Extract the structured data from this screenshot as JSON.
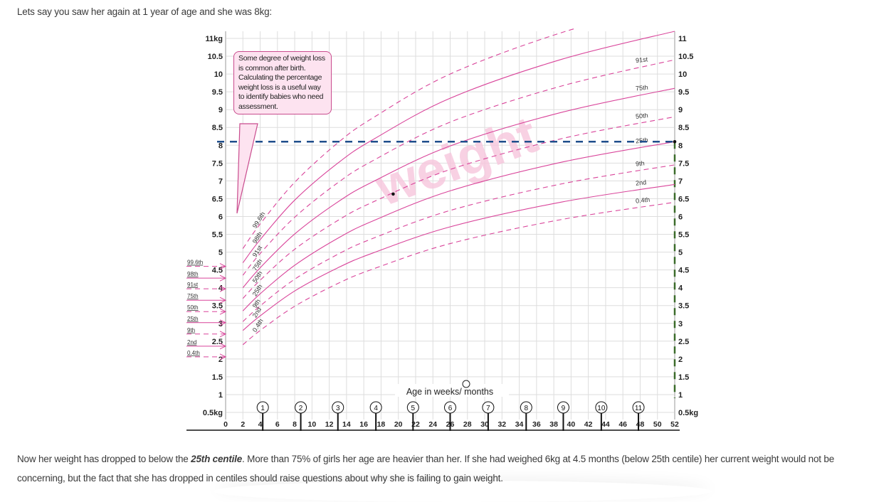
{
  "intro_text": "Lets say you saw her again at 1 year of age and she was 8kg:",
  "outro": {
    "before": "Now her weight has dropped to below the ",
    "bold": "25th centile",
    "after": ". More than 75% of girls her age are heavier than her. If she had weighed 6kg at 4.5 months (below 25th centile) her current weight would not be concerning, but the fact that she has dropped in centiles should raise questions about why she is failing to gain weight."
  },
  "chart_data": {
    "type": "line",
    "title": "",
    "watermark": "weight",
    "xlabel": "Age in weeks/ months",
    "ylabel": "",
    "xlim": [
      0,
      52
    ],
    "ylim": [
      0.5,
      11
    ],
    "x_ticks": [
      0,
      2,
      4,
      6,
      8,
      10,
      12,
      14,
      16,
      18,
      20,
      22,
      24,
      26,
      28,
      30,
      32,
      34,
      36,
      38,
      40,
      42,
      44,
      46,
      48,
      50,
      52
    ],
    "y_ticks_left": [
      "11kg",
      "10.5",
      "10",
      "9.5",
      "9",
      "8.5",
      "8",
      "7.5",
      "7",
      "6.5",
      "6",
      "5.5",
      "5",
      "4.5",
      "4",
      "3.5",
      "3",
      "2.5",
      "2",
      "1.5",
      "1",
      "0.5kg"
    ],
    "y_ticks_right": [
      "11",
      "10.5",
      "10",
      "9.5",
      "9",
      "8.5",
      "8",
      "7.5",
      "7",
      "6.5",
      "6",
      "5.5",
      "5",
      "4.5",
      "4",
      "3.5",
      "3",
      "2.5",
      "2",
      "1.5",
      "1",
      "0.5kg"
    ],
    "month_markers": [
      {
        "label": "1",
        "week": 4.3
      },
      {
        "label": "2",
        "week": 8.7
      },
      {
        "label": "3",
        "week": 13
      },
      {
        "label": "4",
        "week": 17.4
      },
      {
        "label": "5",
        "week": 21.7
      },
      {
        "label": "6",
        "week": 26
      },
      {
        "label": "7",
        "week": 30.4
      },
      {
        "label": "8",
        "week": 34.8
      },
      {
        "label": "9",
        "week": 39.1
      },
      {
        "label": "10",
        "week": 43.5
      },
      {
        "label": "11",
        "week": 47.8
      }
    ],
    "grid": true,
    "colors": {
      "centile": "#d9449a",
      "grid": "#dddddd",
      "reference": "#1f4e8c",
      "axis_right": "#3b6b2a",
      "callout_fill": "#fde3f0",
      "watermark": "#f7c6dd"
    },
    "x": [
      2,
      4,
      8,
      13,
      17,
      26,
      39,
      52
    ],
    "series": [
      {
        "name": "99.6th",
        "dashed": true,
        "birth": 4.6,
        "values": [
          5.1,
          5.79,
          6.96,
          8.07,
          8.76,
          10.0,
          11.17,
          12.0
        ]
      },
      {
        "name": "98th",
        "dashed": false,
        "birth": 4.27,
        "values": [
          4.7,
          5.35,
          6.46,
          7.5,
          8.15,
          9.32,
          10.42,
          11.2
        ]
      },
      {
        "name": "91st",
        "dashed": true,
        "birth": 3.97,
        "values": [
          4.35,
          4.96,
          5.98,
          6.95,
          7.56,
          8.65,
          9.67,
          10.4
        ]
      },
      {
        "name": "75th",
        "dashed": false,
        "birth": 3.65,
        "values": [
          4.0,
          4.56,
          5.51,
          6.41,
          6.97,
          7.98,
          8.93,
          9.6
        ]
      },
      {
        "name": "50th",
        "dashed": true,
        "birth": 3.33,
        "values": [
          3.7,
          4.21,
          5.08,
          5.89,
          6.4,
          7.32,
          8.19,
          8.8
        ]
      },
      {
        "name": "25th",
        "dashed": false,
        "birth": 3.02,
        "values": [
          3.35,
          3.83,
          4.63,
          5.39,
          5.87,
          6.72,
          7.53,
          8.1
        ]
      },
      {
        "name": "9th",
        "dashed": true,
        "birth": 2.7,
        "values": [
          3.05,
          3.49,
          4.24,
          4.94,
          5.38,
          6.17,
          6.92,
          7.45
        ]
      },
      {
        "name": "2nd",
        "dashed": false,
        "birth": 2.36,
        "values": [
          2.8,
          3.21,
          3.91,
          4.56,
          4.97,
          5.71,
          6.41,
          6.9
        ]
      },
      {
        "name": "0.4th",
        "dashed": true,
        "birth": 2.06,
        "values": [
          2.4,
          2.8,
          3.48,
          4.12,
          4.52,
          5.24,
          5.92,
          6.4
        ]
      }
    ],
    "right_labels": [
      "91st",
      "75th",
      "50th",
      "25th",
      "9th",
      "2nd",
      "0.4th"
    ],
    "reference_line": {
      "weight": 8.1
    },
    "points": [
      {
        "week": 19.4,
        "weight": 6.63
      },
      {
        "week": 52,
        "weight": 8.1
      }
    ],
    "annotation": "Some degree of weight loss is common after birth. Calculating the percentage weight loss is a useful way to identify babies who need assessment."
  }
}
